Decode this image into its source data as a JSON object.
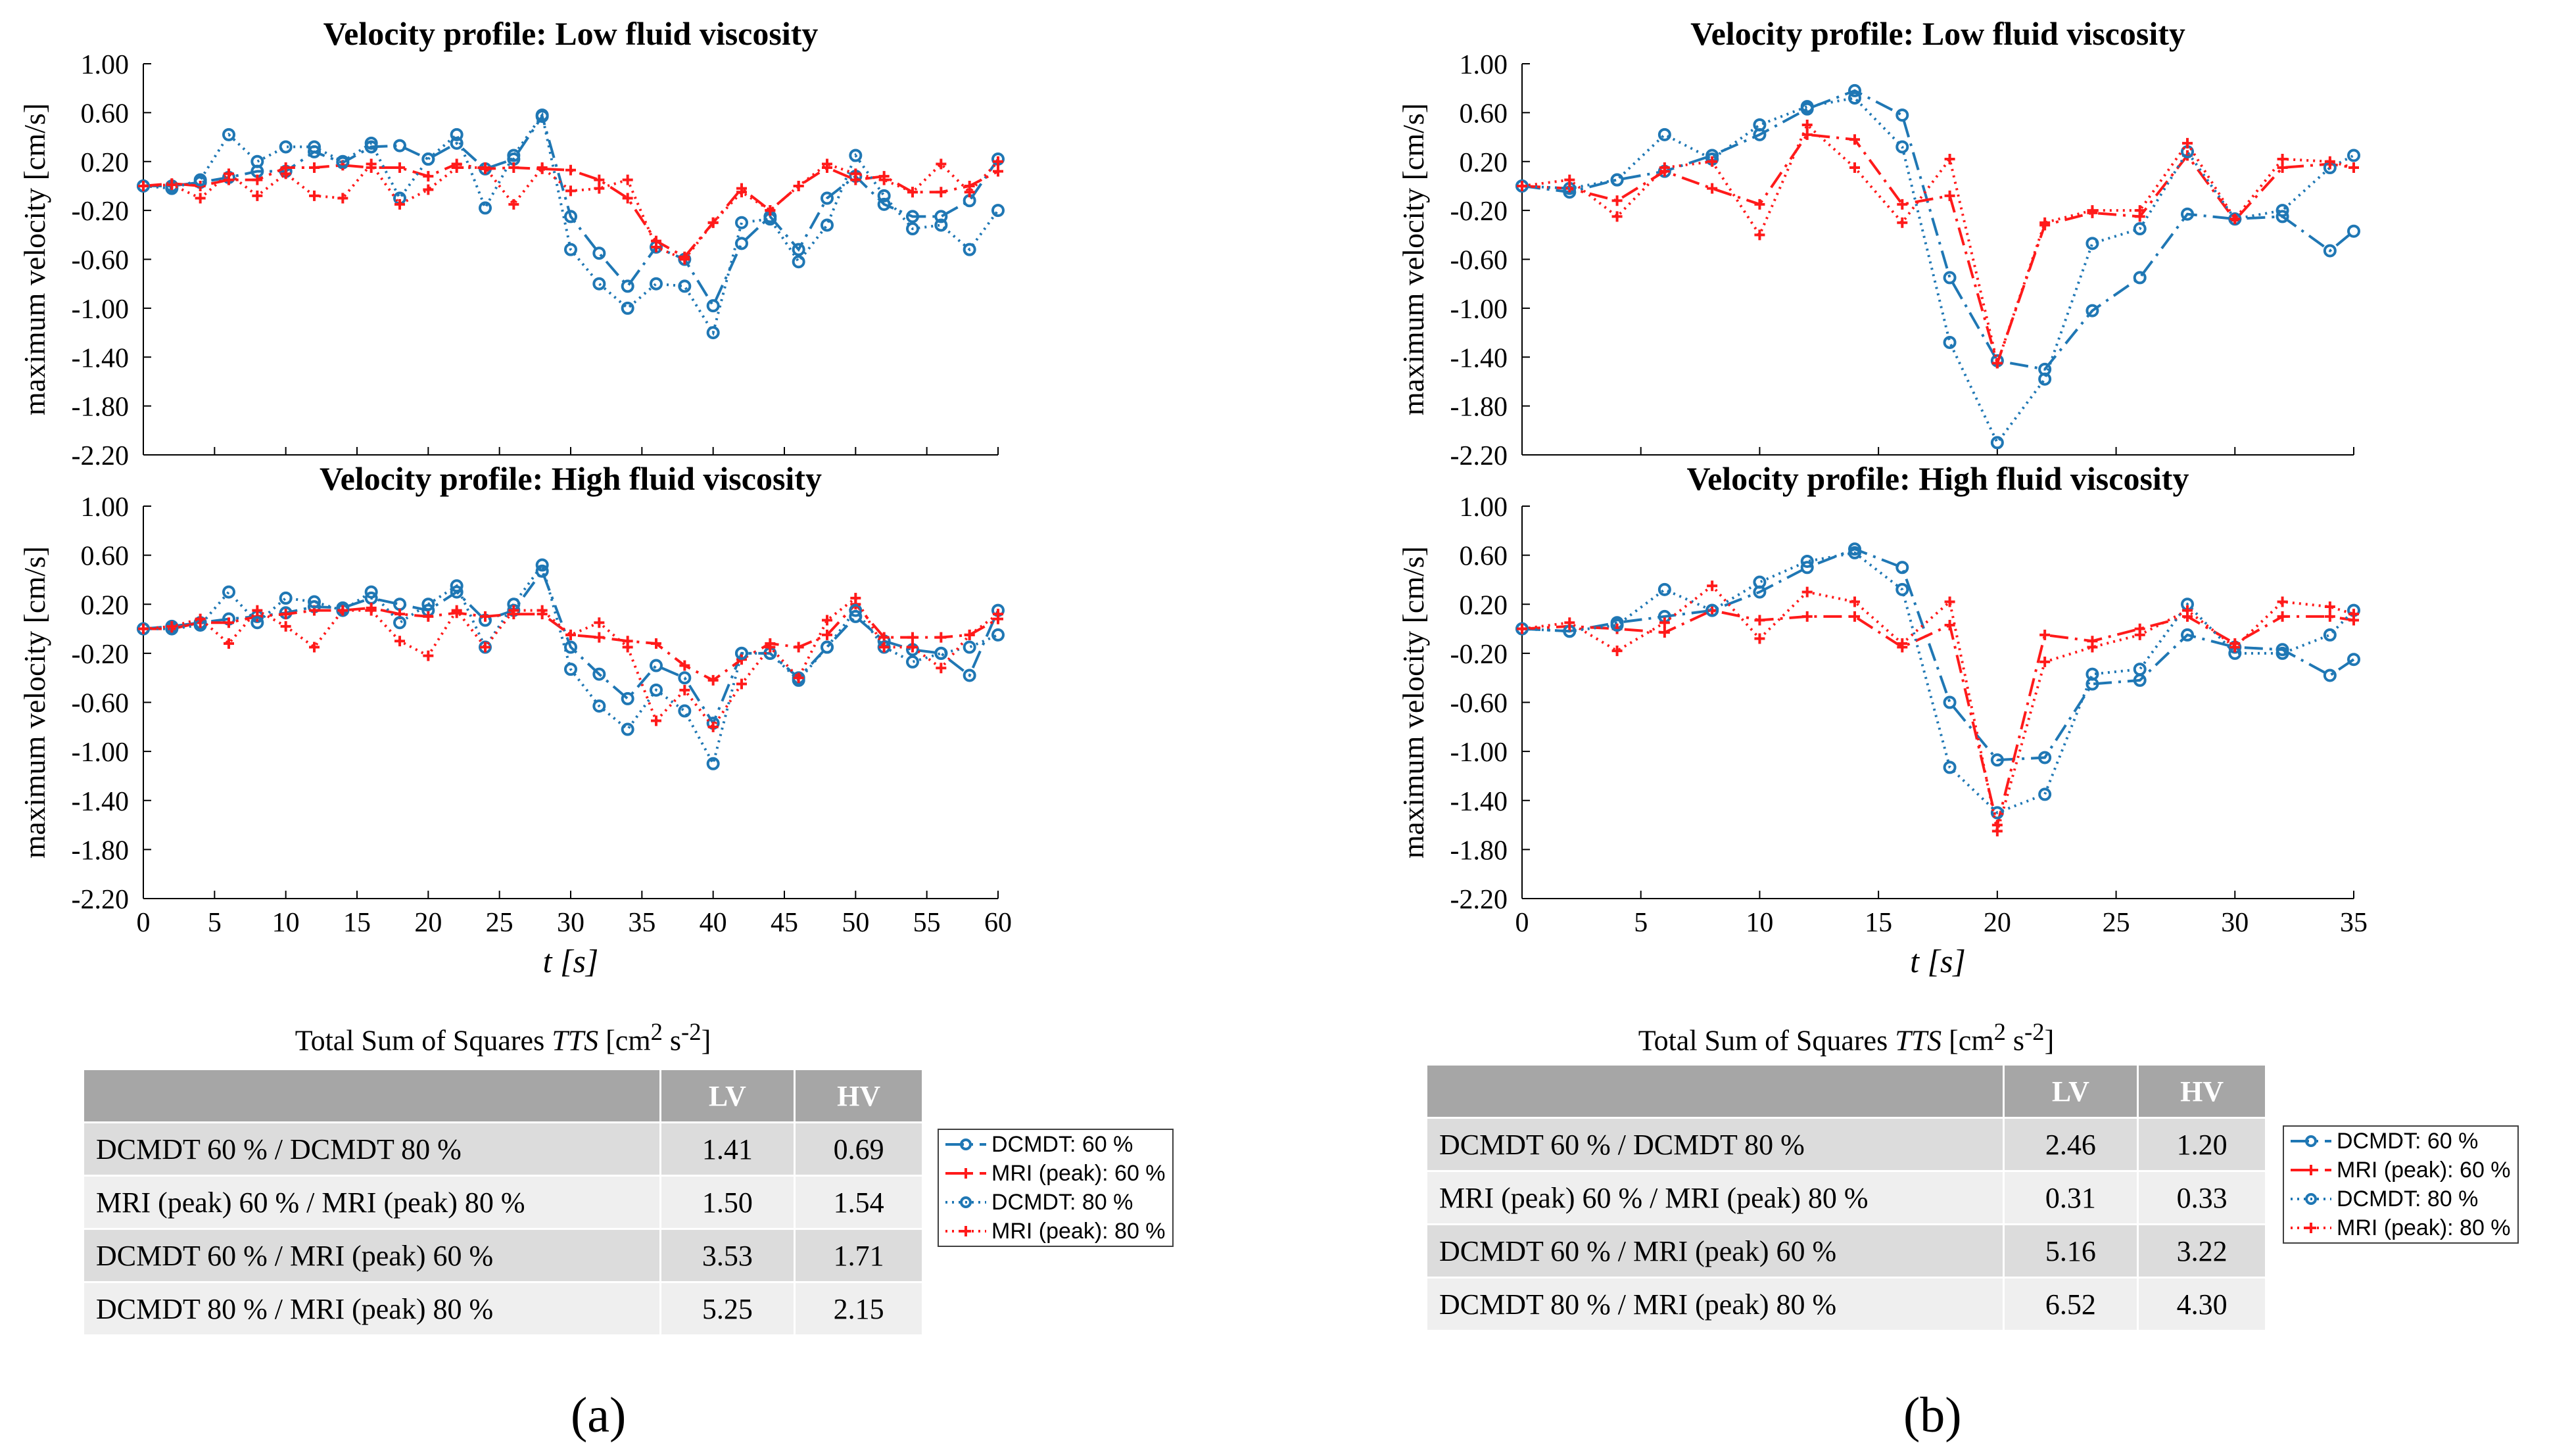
{
  "colors": {
    "blue": "#1f77b4",
    "red": "#ff1a1a",
    "grid": "#000000"
  },
  "series_meta": [
    {
      "key": "d60",
      "label": "DCMDT:  60 %",
      "color": "#1f77b4",
      "dash": "28,10,4,10",
      "marker": "circle"
    },
    {
      "key": "m60",
      "label": "MRI (peak): 60 %",
      "color": "#ff1a1a",
      "dash": "28,10,4,10",
      "marker": "plus"
    },
    {
      "key": "d80",
      "label": "DCMDT:  80 %",
      "color": "#1f77b4",
      "dash": "3,7",
      "marker": "circle"
    },
    {
      "key": "m80",
      "label": "MRI (peak): 80 %",
      "color": "#ff1a1a",
      "dash": "3,7",
      "marker": "plus"
    }
  ],
  "chart_data": [
    {
      "type": "line",
      "panel": "a",
      "title": "Velocity profile: Low fluid viscosity",
      "xlabel": "",
      "ylabel": "maximum velocity [cm/s]",
      "xlim": [
        0,
        60
      ],
      "ylim": [
        -2.2,
        1.0
      ],
      "yticks": [
        "1.00",
        "0.60",
        "0.20",
        "-0.20",
        "-0.60",
        "-1.00",
        "-1.40",
        "-1.80",
        "-2.20"
      ],
      "xticks": [],
      "x": [
        0,
        2,
        4,
        6,
        8,
        10,
        12,
        14,
        16,
        18,
        20,
        22,
        24,
        26,
        28,
        30,
        32,
        34,
        36,
        38,
        40,
        42,
        44,
        46,
        48,
        50,
        52,
        54,
        56,
        58,
        60
      ],
      "series": [
        {
          "name": "DCMDT:  60 %",
          "values": [
            0,
            0,
            0.03,
            0.07,
            0.12,
            0.12,
            0.28,
            0.19,
            0.32,
            0.33,
            0.22,
            0.35,
            0.14,
            0.22,
            0.57,
            -0.25,
            -0.55,
            -0.82,
            -0.5,
            -0.6,
            -0.98,
            -0.47,
            -0.25,
            -0.52,
            -0.1,
            0.08,
            -0.15,
            -0.25,
            -0.25,
            -0.12,
            0.22
          ]
        },
        {
          "name": "MRI (peak): 60 %",
          "values": [
            0,
            0.02,
            0,
            0.05,
            0.05,
            0.15,
            0.15,
            0.17,
            0.15,
            0.15,
            0.08,
            0.18,
            0.14,
            0.15,
            0.14,
            0.13,
            0.05,
            -0.1,
            -0.45,
            -0.58,
            -0.3,
            -0.02,
            -0.2,
            0,
            0.15,
            0.05,
            0.08,
            -0.05,
            -0.05,
            0,
            0.12
          ]
        },
        {
          "name": "DCMDT:  80 %",
          "values": [
            0,
            -0.02,
            0.05,
            0.42,
            0.2,
            0.32,
            0.32,
            0.2,
            0.35,
            -0.1,
            0.22,
            0.42,
            -0.18,
            0.25,
            0.58,
            -0.52,
            -0.8,
            -1.0,
            -0.8,
            -0.82,
            -1.2,
            -0.3,
            -0.27,
            -0.62,
            -0.32,
            0.25,
            -0.08,
            -0.35,
            -0.32,
            -0.52,
            -0.2
          ]
        },
        {
          "name": "MRI (peak): 80 %",
          "values": [
            0,
            0.01,
            -0.1,
            0.1,
            -0.08,
            0.1,
            -0.08,
            -0.1,
            0.18,
            -0.15,
            -0.03,
            0.15,
            0.15,
            -0.15,
            0.15,
            -0.04,
            -0.02,
            0.05,
            -0.5,
            -0.6,
            -0.3,
            -0.05,
            -0.2,
            0,
            0.18,
            0.1,
            0.05,
            -0.05,
            0.18,
            -0.05,
            0.2
          ]
        }
      ]
    },
    {
      "type": "line",
      "panel": "a",
      "title": "Velocity profile: High fluid viscosity",
      "xlabel": "t [s]",
      "ylabel": "maximum velocity [cm/s]",
      "xlim": [
        0,
        60
      ],
      "ylim": [
        -2.2,
        1.0
      ],
      "yticks": [
        "1.00",
        "0.60",
        "0.20",
        "-0.20",
        "-0.60",
        "-1.00",
        "-1.40",
        "-1.80",
        "-2.20"
      ],
      "xticks": [
        "0",
        "5",
        "10",
        "15",
        "20",
        "25",
        "30",
        "35",
        "40",
        "45",
        "50",
        "55",
        "60"
      ],
      "x": [
        0,
        2,
        4,
        6,
        8,
        10,
        12,
        14,
        16,
        18,
        20,
        22,
        24,
        26,
        28,
        30,
        32,
        34,
        36,
        38,
        40,
        42,
        44,
        46,
        48,
        50,
        52,
        54,
        56,
        58,
        60
      ],
      "series": [
        {
          "name": "DCMDT:  60 %",
          "values": [
            0,
            0.02,
            0.05,
            0.08,
            0.1,
            0.13,
            0.18,
            0.17,
            0.25,
            0.2,
            0.15,
            0.3,
            0.07,
            0.15,
            0.47,
            -0.15,
            -0.37,
            -0.57,
            -0.3,
            -0.4,
            -0.77,
            -0.2,
            -0.2,
            -0.4,
            -0.15,
            0.1,
            -0.1,
            -0.17,
            -0.2,
            -0.38,
            0.15
          ]
        },
        {
          "name": "MRI (peak): 60 %",
          "values": [
            0,
            0,
            0.05,
            0.05,
            0.1,
            0.12,
            0.15,
            0.15,
            0.17,
            0.12,
            0.1,
            0.13,
            0.1,
            0.12,
            0.12,
            -0.05,
            -0.07,
            -0.1,
            -0.12,
            -0.3,
            -0.42,
            -0.25,
            -0.12,
            -0.15,
            -0.05,
            0.2,
            -0.07,
            -0.07,
            -0.07,
            -0.05,
            0.08
          ]
        },
        {
          "name": "DCMDT:  80 %",
          "values": [
            0,
            0,
            0.03,
            0.3,
            0.05,
            0.25,
            0.22,
            0.15,
            0.3,
            0.05,
            0.2,
            0.35,
            -0.15,
            0.2,
            0.52,
            -0.33,
            -0.63,
            -0.82,
            -0.5,
            -0.67,
            -1.1,
            -0.2,
            -0.2,
            -0.42,
            -0.15,
            0.15,
            -0.15,
            -0.27,
            -0.2,
            -0.15,
            -0.05
          ]
        },
        {
          "name": "MRI (peak): 80 %",
          "values": [
            0,
            0.02,
            0.08,
            -0.12,
            0.15,
            0.02,
            -0.15,
            0.15,
            0.15,
            -0.1,
            -0.22,
            0.15,
            -0.15,
            0.15,
            0.15,
            -0.05,
            0.05,
            -0.15,
            -0.75,
            -0.5,
            -0.8,
            -0.45,
            -0.15,
            -0.4,
            0.07,
            0.25,
            -0.15,
            -0.15,
            -0.32,
            -0.05,
            0.12
          ]
        }
      ]
    },
    {
      "type": "line",
      "panel": "b",
      "title": "Velocity profile: Low fluid viscosity",
      "xlabel": "",
      "ylabel": "maximum velocity [cm/s]",
      "xlim": [
        0,
        35
      ],
      "ylim": [
        -2.2,
        1.0
      ],
      "yticks": [
        "1.00",
        "0.60",
        "0.20",
        "-0.20",
        "-0.60",
        "-1.00",
        "-1.40",
        "-1.80",
        "-2.20"
      ],
      "xticks": [],
      "x": [
        0,
        2,
        4,
        6,
        8,
        10,
        12,
        14,
        16,
        18,
        20,
        22,
        24,
        26,
        28,
        30,
        32,
        34,
        35
      ],
      "series": [
        {
          "name": "DCMDT:  60 %",
          "values": [
            0,
            -0.05,
            0.05,
            0.12,
            0.25,
            0.42,
            0.63,
            0.78,
            0.58,
            -0.75,
            -1.43,
            -1.5,
            -1.02,
            -0.75,
            -0.23,
            -0.27,
            -0.25,
            -0.53,
            -0.37
          ]
        },
        {
          "name": "MRI (peak): 60 %",
          "values": [
            0,
            -0.02,
            -0.12,
            0.12,
            -0.02,
            -0.15,
            0.42,
            0.38,
            -0.15,
            -0.08,
            -1.45,
            -0.32,
            -0.22,
            -0.25,
            0.25,
            -0.28,
            0.15,
            0.18,
            0.15
          ]
        },
        {
          "name": "DCMDT:  80 %",
          "values": [
            0,
            -0.02,
            0.05,
            0.42,
            0.22,
            0.5,
            0.65,
            0.72,
            0.32,
            -1.28,
            -2.1,
            -1.58,
            -0.47,
            -0.35,
            0.28,
            -0.27,
            -0.2,
            0.15,
            0.25
          ]
        },
        {
          "name": "MRI (peak): 80 %",
          "values": [
            0,
            0.05,
            -0.25,
            0.15,
            0.2,
            -0.4,
            0.5,
            0.15,
            -0.3,
            0.22,
            -1.45,
            -0.3,
            -0.2,
            -0.2,
            0.35,
            -0.27,
            0.22,
            0.2,
            0.15
          ]
        }
      ]
    },
    {
      "type": "line",
      "panel": "b",
      "title": "Velocity profile: High fluid viscosity",
      "xlabel": "t [s]",
      "ylabel": "maximum velocity [cm/s]",
      "xlim": [
        0,
        35
      ],
      "ylim": [
        -2.2,
        1.0
      ],
      "yticks": [
        "1.00",
        "0.60",
        "0.20",
        "-0.20",
        "-0.60",
        "-1.00",
        "-1.40",
        "-1.80",
        "-2.20"
      ],
      "xticks": [
        "0",
        "5",
        "10",
        "15",
        "20",
        "25",
        "30",
        "35"
      ],
      "x": [
        0,
        2,
        4,
        6,
        8,
        10,
        12,
        14,
        16,
        18,
        20,
        22,
        24,
        26,
        28,
        30,
        32,
        34,
        35
      ],
      "series": [
        {
          "name": "DCMDT:  60 %",
          "values": [
            0,
            -0.02,
            0.05,
            0.1,
            0.15,
            0.3,
            0.5,
            0.65,
            0.5,
            -0.6,
            -1.07,
            -1.05,
            -0.45,
            -0.42,
            -0.05,
            -0.15,
            -0.17,
            -0.38,
            -0.25
          ]
        },
        {
          "name": "MRI (peak): 60 %",
          "values": [
            0,
            0.02,
            0,
            -0.03,
            0.15,
            0.07,
            0.1,
            0.1,
            -0.15,
            0.03,
            -1.6,
            -0.05,
            -0.1,
            0,
            0.1,
            -0.12,
            0.1,
            0.1,
            0.07
          ]
        },
        {
          "name": "DCMDT:  80 %",
          "values": [
            0,
            -0.02,
            0.03,
            0.32,
            0.15,
            0.38,
            0.55,
            0.62,
            0.32,
            -1.13,
            -1.5,
            -1.35,
            -0.37,
            -0.33,
            0.2,
            -0.2,
            -0.2,
            -0.05,
            0.15
          ]
        },
        {
          "name": "MRI (peak): 80 %",
          "values": [
            0,
            0.05,
            -0.18,
            0.05,
            0.35,
            -0.08,
            0.3,
            0.22,
            -0.12,
            0.22,
            -1.65,
            -0.27,
            -0.15,
            -0.05,
            0.15,
            -0.15,
            0.22,
            0.18,
            0.12
          ]
        }
      ]
    }
  ],
  "tables": [
    {
      "panel": "a",
      "title_pre": "Total Sum of Squares ",
      "title_var": "TTS",
      "title_unit": " [cm",
      "sup1": "2",
      "mid": " s",
      "sup2": "-2",
      "end": "]",
      "headers": [
        "",
        "LV",
        "HV"
      ],
      "rows": [
        {
          "label": "DCMDT 60 % /  DCMDT 80 %",
          "lv": "1.41",
          "hv": "0.69"
        },
        {
          "label": "MRI (peak) 60 % /  MRI (peak) 80 %",
          "lv": "1.50",
          "hv": "1.54"
        },
        {
          "label": "DCMDT 60 % /  MRI (peak) 60 %",
          "lv": "3.53",
          "hv": "1.71"
        },
        {
          "label": "DCMDT 80 % /  MRI (peak) 80 %",
          "lv": "5.25",
          "hv": "2.15"
        }
      ]
    },
    {
      "panel": "b",
      "title_pre": "Total Sum of Squares ",
      "title_var": "TTS",
      "title_unit": " [cm",
      "sup1": "2",
      "mid": " s",
      "sup2": "-2",
      "end": "]",
      "headers": [
        "",
        "LV",
        "HV"
      ],
      "rows": [
        {
          "label": "DCMDT 60 % /  DCMDT 80 %",
          "lv": "2.46",
          "hv": "1.20"
        },
        {
          "label": "MRI (peak) 60 % /  MRI (peak) 80 %",
          "lv": "0.31",
          "hv": "0.33"
        },
        {
          "label": "DCMDT 60 % /  MRI (peak) 60 %",
          "lv": "5.16",
          "hv": "3.22"
        },
        {
          "label": "DCMDT 80 % /  MRI (peak) 80 %",
          "lv": "6.52",
          "hv": "4.30"
        }
      ]
    }
  ],
  "panel_labels": [
    "(a)",
    "(b)"
  ]
}
